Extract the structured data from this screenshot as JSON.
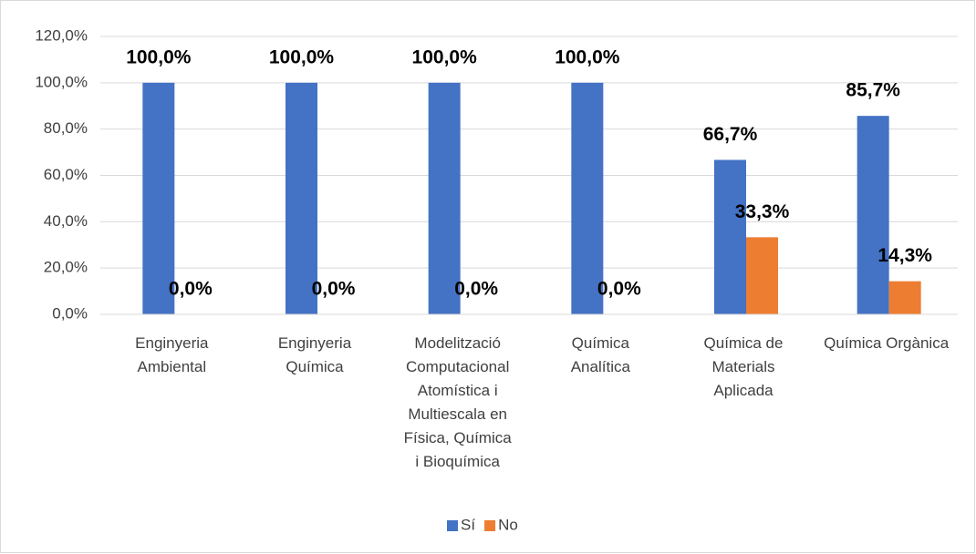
{
  "chart_data": {
    "type": "bar",
    "categories": [
      "Enginyeria Ambiental",
      "Enginyeria Química",
      "Modelització Computacional Atomística i Multiescala en Física, Química i Bioquímica",
      "Química Analítica",
      "Química de Materials Aplicada",
      "Química Orgànica"
    ],
    "series": [
      {
        "name": "Sí",
        "color": "#4472c4",
        "values": [
          100,
          100,
          100,
          100,
          66.7,
          85.7
        ],
        "value_labels": [
          "100,0%",
          "100,0%",
          "100,0%",
          "100,0%",
          "66,7%",
          "85,7%"
        ]
      },
      {
        "name": "No",
        "color": "#ed7d31",
        "values": [
          0,
          0,
          0,
          0,
          33.3,
          14.3
        ],
        "value_labels": [
          "0,0%",
          "0,0%",
          "0,0%",
          "0,0%",
          "33,3%",
          "14,3%"
        ]
      }
    ],
    "ylim": [
      0,
      120
    ],
    "yticks": [
      {
        "value": 0,
        "label": "0,0%"
      },
      {
        "value": 20,
        "label": "20,0%"
      },
      {
        "value": 40,
        "label": "40,0%"
      },
      {
        "value": 60,
        "label": "60,0%"
      },
      {
        "value": 80,
        "label": "80,0%"
      },
      {
        "value": 100,
        "label": "100,0%"
      },
      {
        "value": 120,
        "label": "120,0%"
      }
    ],
    "grid": true,
    "legend": "bottom"
  }
}
